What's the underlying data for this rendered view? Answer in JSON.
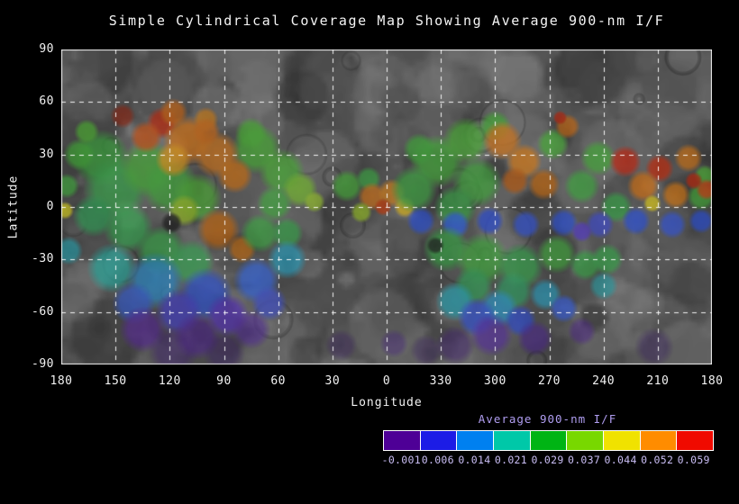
{
  "title": "Simple Cylindrical Coverage Map Showing Average 900-nm I/F",
  "axes": {
    "x_label": "Longitude",
    "y_label": "Latitude",
    "x_ticks": [
      "180",
      "150",
      "120",
      "90",
      "60",
      "30",
      "0",
      "330",
      "300",
      "270",
      "240",
      "210",
      "180"
    ],
    "y_ticks": [
      "90",
      "60",
      "30",
      "0",
      "-30",
      "-60",
      "-90"
    ]
  },
  "colorbar": {
    "title": "Average 900-nm I/F",
    "title_color": "#af9df0",
    "label_color": "#c9bdf4",
    "tick_labels": [
      "-0.001",
      "0.006",
      "0.014",
      "0.021",
      "0.029",
      "0.037",
      "0.044",
      "0.052",
      "0.059"
    ],
    "segment_colors": [
      "#4e0096",
      "#1c1ce6",
      "#0080f0",
      "#00c8a8",
      "#00b414",
      "#78d800",
      "#f0e200",
      "#ff8c00",
      "#f00a00"
    ]
  },
  "chart_data": {
    "type": "heatmap",
    "title": "Simple Cylindrical Coverage Map Showing Average 900-nm I/F",
    "xlabel": "Longitude",
    "ylabel": "Latitude",
    "x_ticks_deg": [
      180,
      150,
      120,
      90,
      60,
      30,
      0,
      330,
      300,
      270,
      240,
      210,
      180
    ],
    "y_ticks_deg": [
      90,
      60,
      30,
      0,
      -30,
      -60,
      -90
    ],
    "ylim": [
      -90,
      90
    ],
    "value_label": "Average 900-nm I/F",
    "value_range": [
      -0.001,
      0.059
    ],
    "grid": "dashed-white-30deg",
    "map_background_gray": "#6b6b6b",
    "coverage_blobs": [
      {
        "lon": 158,
        "lat": 28,
        "r": 16,
        "c": "#3fae42"
      },
      {
        "lon": 150,
        "lat": 10,
        "r": 18,
        "c": "#3cab4e"
      },
      {
        "lon": 162,
        "lat": -5,
        "r": 12,
        "c": "#36a75c"
      },
      {
        "lon": 143,
        "lat": -12,
        "r": 14,
        "c": "#3aad55"
      },
      {
        "lon": 132,
        "lat": 22,
        "r": 16,
        "c": "#4cb23c"
      },
      {
        "lon": 120,
        "lat": 12,
        "r": 16,
        "c": "#46b040"
      },
      {
        "lon": 105,
        "lat": 5,
        "r": 14,
        "c": "#52b43a"
      },
      {
        "lon": 72,
        "lat": 33,
        "r": 14,
        "c": "#4db53a"
      },
      {
        "lon": 75,
        "lat": 42,
        "r": 9,
        "c": "#4fb63a"
      },
      {
        "lon": 58,
        "lat": 20,
        "r": 13,
        "c": "#53b93f"
      },
      {
        "lon": 48,
        "lat": 10,
        "r": 10,
        "c": "#7cc234"
      },
      {
        "lon": 62,
        "lat": 2,
        "r": 10,
        "c": "#49b046"
      },
      {
        "lon": 170,
        "lat": 30,
        "r": 9,
        "c": "#46b23c"
      },
      {
        "lon": 166,
        "lat": 43,
        "r": 7,
        "c": "#54b838"
      },
      {
        "lon": 177,
        "lat": 12,
        "r": 7,
        "c": "#49b546"
      },
      {
        "lon": 112,
        "lat": -2,
        "r": 9,
        "c": "#a0c62c"
      },
      {
        "lon": 40,
        "lat": 3,
        "r": 6,
        "c": "#9cc832"
      },
      {
        "lon": 146,
        "lat": 52,
        "r": 7,
        "c": "#8f2b18"
      },
      {
        "lon": 124,
        "lat": 48,
        "r": 9,
        "c": "#c62d10"
      },
      {
        "lon": 118,
        "lat": 54,
        "r": 8,
        "c": "#cf6a16"
      },
      {
        "lon": 100,
        "lat": 50,
        "r": 7,
        "c": "#d2811c"
      },
      {
        "lon": 133,
        "lat": 40,
        "r": 9,
        "c": "#d2591a"
      },
      {
        "lon": 110,
        "lat": 38,
        "r": 14,
        "c": "#de7a18"
      },
      {
        "lon": 94,
        "lat": 30,
        "r": 13,
        "c": "#db7d20"
      },
      {
        "lon": 84,
        "lat": 18,
        "r": 10,
        "c": "#d37516"
      },
      {
        "lon": 118,
        "lat": 27,
        "r": 10,
        "c": "#e29b1e"
      },
      {
        "lon": 100,
        "lat": 43,
        "r": 8,
        "c": "#d4701c"
      },
      {
        "lon": 93,
        "lat": -13,
        "r": 12,
        "c": "#c8690f"
      },
      {
        "lon": 80,
        "lat": -24,
        "r": 8,
        "c": "#cd7418"
      },
      {
        "lon": 178,
        "lat": -2,
        "r": 5,
        "c": "#e3da22"
      },
      {
        "lon": 176,
        "lat": -25,
        "r": 8,
        "c": "#2fa8b4"
      },
      {
        "lon": 125,
        "lat": -25,
        "r": 14,
        "c": "#3fae50"
      },
      {
        "lon": 108,
        "lat": -32,
        "r": 13,
        "c": "#3cab58"
      },
      {
        "lon": 70,
        "lat": -15,
        "r": 11,
        "c": "#44b04a"
      },
      {
        "lon": 55,
        "lat": -15,
        "r": 9,
        "c": "#40ae52"
      },
      {
        "lon": 152,
        "lat": -35,
        "r": 14,
        "c": "#2bb0a4"
      },
      {
        "lon": 128,
        "lat": -42,
        "r": 16,
        "c": "#2f93d4"
      },
      {
        "lon": 100,
        "lat": -50,
        "r": 15,
        "c": "#3358dc"
      },
      {
        "lon": 72,
        "lat": -42,
        "r": 13,
        "c": "#3a6ce8"
      },
      {
        "lon": 55,
        "lat": -30,
        "r": 11,
        "c": "#2fa8c8"
      },
      {
        "lon": 140,
        "lat": -55,
        "r": 12,
        "c": "#3a62d8"
      },
      {
        "lon": 115,
        "lat": -60,
        "r": 13,
        "c": "#4a42cc"
      },
      {
        "lon": 88,
        "lat": -62,
        "r": 12,
        "c": "#5a35c0"
      },
      {
        "lon": 65,
        "lat": -55,
        "r": 10,
        "c": "#4656d2"
      },
      {
        "lon": 135,
        "lat": -70,
        "r": 13,
        "c": "#5c2aa0",
        "a": 0.8
      },
      {
        "lon": 105,
        "lat": -74,
        "r": 13,
        "c": "#55289a",
        "a": 0.75
      },
      {
        "lon": 75,
        "lat": -70,
        "r": 11,
        "c": "#5a2fa6",
        "a": 0.7
      },
      {
        "lon": 118,
        "lat": -82,
        "r": 14,
        "c": "#44207c",
        "a": 0.55
      },
      {
        "lon": 90,
        "lat": -83,
        "r": 12,
        "c": "#3e1d72",
        "a": 0.5
      },
      {
        "lon": 119,
        "lat": -9,
        "r": 6,
        "c": "#1e1e1e",
        "a": 0.85
      },
      {
        "lon": 22,
        "lat": 12,
        "r": 9,
        "c": "#4bb43e"
      },
      {
        "lon": 10,
        "lat": 16,
        "r": 7,
        "c": "#43b04a"
      },
      {
        "lon": 8,
        "lat": 6,
        "r": 8,
        "c": "#d97a1e"
      },
      {
        "lon": 357,
        "lat": 8,
        "r": 8,
        "c": "#dd8822"
      },
      {
        "lon": 2,
        "lat": 0,
        "r": 5,
        "c": "#cc4010"
      },
      {
        "lon": 350,
        "lat": 0,
        "r": 6,
        "c": "#e0b81e"
      },
      {
        "lon": 14,
        "lat": -3,
        "r": 6,
        "c": "#9cc42c"
      },
      {
        "lon": 332,
        "lat": 26,
        "r": 15,
        "c": "#49b43e"
      },
      {
        "lon": 342,
        "lat": 33,
        "r": 9,
        "c": "#46b240"
      },
      {
        "lon": 316,
        "lat": 38,
        "r": 13,
        "c": "#4fb63a"
      },
      {
        "lon": 345,
        "lat": 10,
        "r": 13,
        "c": "#44b148"
      },
      {
        "lon": 310,
        "lat": 14,
        "r": 14,
        "c": "#47b243"
      },
      {
        "lon": 322,
        "lat": 0,
        "r": 12,
        "c": "#41af4e"
      },
      {
        "lon": 300,
        "lat": 46,
        "r": 9,
        "c": "#4ab33c"
      },
      {
        "lon": 268,
        "lat": 36,
        "r": 9,
        "c": "#4cb43c"
      },
      {
        "lon": 243,
        "lat": 28,
        "r": 10,
        "c": "#4ab33e"
      },
      {
        "lon": 252,
        "lat": 12,
        "r": 10,
        "c": "#45b146"
      },
      {
        "lon": 233,
        "lat": 0,
        "r": 9,
        "c": "#3fb050"
      },
      {
        "lon": 186,
        "lat": 6,
        "r": 8,
        "c": "#49b43e"
      },
      {
        "lon": 184,
        "lat": 18,
        "r": 6,
        "c": "#52b83a"
      },
      {
        "lon": 296,
        "lat": 38,
        "r": 11,
        "c": "#dd7d1e"
      },
      {
        "lon": 284,
        "lat": 26,
        "r": 10,
        "c": "#e0821c"
      },
      {
        "lon": 273,
        "lat": 13,
        "r": 9,
        "c": "#d47518"
      },
      {
        "lon": 289,
        "lat": 15,
        "r": 8,
        "c": "#c36114"
      },
      {
        "lon": 260,
        "lat": 46,
        "r": 7,
        "c": "#d07018"
      },
      {
        "lon": 264,
        "lat": 51,
        "r": 4,
        "c": "#c22a12"
      },
      {
        "lon": 193,
        "lat": 28,
        "r": 8,
        "c": "#d87a1a"
      },
      {
        "lon": 228,
        "lat": 26,
        "r": 9,
        "c": "#cc2812"
      },
      {
        "lon": 209,
        "lat": 22,
        "r": 8,
        "c": "#d03010"
      },
      {
        "lon": 218,
        "lat": 12,
        "r": 9,
        "c": "#dd7716"
      },
      {
        "lon": 200,
        "lat": 7,
        "r": 8,
        "c": "#e08018"
      },
      {
        "lon": 190,
        "lat": 15,
        "r": 5,
        "c": "#c82c10"
      },
      {
        "lon": 183,
        "lat": 10,
        "r": 6,
        "c": "#d84815"
      },
      {
        "lon": 213,
        "lat": 2,
        "r": 5,
        "c": "#e6d21e"
      },
      {
        "lon": 341,
        "lat": -8,
        "r": 8,
        "c": "#2f55e0"
      },
      {
        "lon": 322,
        "lat": -10,
        "r": 8,
        "c": "#3366ee"
      },
      {
        "lon": 303,
        "lat": -8,
        "r": 8,
        "c": "#2e50dc"
      },
      {
        "lon": 283,
        "lat": -10,
        "r": 8,
        "c": "#3a5ce4"
      },
      {
        "lon": 262,
        "lat": -9,
        "r": 8,
        "c": "#2f55e0"
      },
      {
        "lon": 242,
        "lat": -10,
        "r": 8,
        "c": "#4450d6"
      },
      {
        "lon": 222,
        "lat": -8,
        "r": 8,
        "c": "#2f55e0"
      },
      {
        "lon": 202,
        "lat": -10,
        "r": 8,
        "c": "#3a5ce4"
      },
      {
        "lon": 186,
        "lat": -8,
        "r": 7,
        "c": "#2f55e0"
      },
      {
        "lon": 252,
        "lat": -14,
        "r": 6,
        "c": "#5a3fd0"
      },
      {
        "lon": 327,
        "lat": -24,
        "r": 13,
        "c": "#3fae4c"
      },
      {
        "lon": 307,
        "lat": -30,
        "r": 15,
        "c": "#46b243"
      },
      {
        "lon": 286,
        "lat": -34,
        "r": 13,
        "c": "#3cad52"
      },
      {
        "lon": 266,
        "lat": -27,
        "r": 11,
        "c": "#49b345"
      },
      {
        "lon": 250,
        "lat": -33,
        "r": 9,
        "c": "#40ae4e"
      },
      {
        "lon": 238,
        "lat": -30,
        "r": 9,
        "c": "#3dae50"
      },
      {
        "lon": 312,
        "lat": -45,
        "r": 11,
        "c": "#38a85e"
      },
      {
        "lon": 290,
        "lat": -48,
        "r": 11,
        "c": "#35a568"
      },
      {
        "lon": 240,
        "lat": -45,
        "r": 8,
        "c": "#32a2a8"
      },
      {
        "lon": 322,
        "lat": -54,
        "r": 11,
        "c": "#2aa8b8"
      },
      {
        "lon": 298,
        "lat": -58,
        "r": 11,
        "c": "#2f9fd0"
      },
      {
        "lon": 272,
        "lat": -50,
        "r": 9,
        "c": "#30a4c4"
      },
      {
        "lon": 310,
        "lat": -63,
        "r": 11,
        "c": "#3a5ae0"
      },
      {
        "lon": 286,
        "lat": -65,
        "r": 9,
        "c": "#3350d8"
      },
      {
        "lon": 262,
        "lat": -58,
        "r": 8,
        "c": "#3b62e2"
      },
      {
        "lon": 302,
        "lat": -73,
        "r": 12,
        "c": "#5c2fae",
        "a": 0.75
      },
      {
        "lon": 278,
        "lat": -75,
        "r": 10,
        "c": "#52289e",
        "a": 0.7
      },
      {
        "lon": 322,
        "lat": -79,
        "r": 11,
        "c": "#47217e",
        "a": 0.55
      },
      {
        "lon": 252,
        "lat": -71,
        "r": 8,
        "c": "#55289a",
        "a": 0.6
      },
      {
        "lon": 356,
        "lat": -78,
        "r": 8,
        "c": "#4a2488",
        "a": 0.5
      },
      {
        "lon": 338,
        "lat": -82,
        "r": 9,
        "c": "#3d1c6e",
        "a": 0.4
      },
      {
        "lon": 212,
        "lat": -80,
        "r": 11,
        "c": "#3a1b68",
        "a": 0.45
      },
      {
        "lon": 25,
        "lat": -79,
        "r": 9,
        "c": "#3d1c6e",
        "a": 0.4
      },
      {
        "lon": 333,
        "lat": -22,
        "r": 5,
        "c": "#202020",
        "a": 0.8
      }
    ]
  }
}
